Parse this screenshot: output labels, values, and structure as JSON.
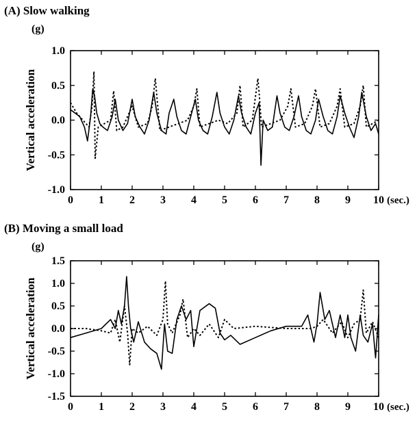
{
  "chart_data": [
    {
      "type": "line",
      "title": "(A)  Slow walking",
      "unit_label": "(g)",
      "ylabel": "Vertical acceleration",
      "xlabel": "",
      "x_unit_label": "(sec.)",
      "xlim": [
        0,
        10
      ],
      "ylim": [
        -1.0,
        1.0
      ],
      "xticks": [
        "0",
        "1",
        "2",
        "3",
        "4",
        "5",
        "6",
        "7",
        "8",
        "9",
        "10"
      ],
      "yticks": [
        "1.0",
        "0.5",
        "0.0",
        "-0.5",
        "-1.0"
      ],
      "grid": false,
      "series": [
        {
          "style": "solid",
          "x": [
            0,
            0.15,
            0.3,
            0.45,
            0.55,
            0.65,
            0.72,
            0.78,
            0.85,
            0.95,
            1.05,
            1.2,
            1.35,
            1.45,
            1.55,
            1.7,
            1.85,
            2.0,
            2.1,
            2.25,
            2.4,
            2.55,
            2.7,
            2.8,
            2.95,
            3.1,
            3.2,
            3.35,
            3.45,
            3.6,
            3.75,
            3.9,
            4.05,
            4.15,
            4.3,
            4.45,
            4.6,
            4.75,
            4.85,
            5.0,
            5.15,
            5.3,
            5.45,
            5.55,
            5.7,
            5.85,
            6.0,
            6.12,
            6.18,
            6.25,
            6.4,
            6.55,
            6.7,
            6.8,
            6.95,
            7.1,
            7.25,
            7.4,
            7.5,
            7.65,
            7.8,
            7.95,
            8.05,
            8.2,
            8.35,
            8.5,
            8.65,
            8.75,
            8.9,
            9.05,
            9.2,
            9.35,
            9.45,
            9.6,
            9.75,
            9.9,
            10.0
          ],
          "y": [
            0.15,
            0.1,
            0.05,
            -0.1,
            -0.3,
            0.05,
            0.45,
            0.35,
            0.1,
            -0.05,
            -0.1,
            -0.15,
            0.05,
            0.3,
            0.0,
            -0.15,
            -0.05,
            0.3,
            0.05,
            -0.1,
            -0.2,
            0.0,
            0.4,
            0.1,
            -0.15,
            -0.2,
            0.1,
            0.3,
            0.05,
            -0.15,
            -0.2,
            0.05,
            0.3,
            0.0,
            -0.15,
            -0.2,
            0.05,
            0.4,
            0.1,
            -0.1,
            -0.2,
            0.0,
            0.35,
            0.1,
            -0.1,
            -0.2,
            0.1,
            0.25,
            -0.65,
            0.0,
            -0.15,
            -0.1,
            0.35,
            0.1,
            -0.1,
            -0.15,
            0.05,
            0.35,
            0.05,
            -0.15,
            -0.2,
            0.0,
            0.3,
            0.05,
            -0.15,
            -0.2,
            0.05,
            0.35,
            0.1,
            -0.1,
            -0.25,
            0.05,
            0.4,
            0.05,
            -0.15,
            -0.05,
            -0.2
          ]
        },
        {
          "style": "dotted",
          "x": [
            0,
            0.2,
            0.4,
            0.6,
            0.7,
            0.76,
            0.8,
            0.9,
            1.1,
            1.3,
            1.4,
            1.5,
            1.7,
            2.0,
            2.2,
            2.5,
            2.65,
            2.75,
            2.9,
            3.2,
            3.5,
            3.8,
            4.0,
            4.1,
            4.2,
            4.5,
            4.8,
            5.1,
            5.4,
            5.5,
            5.6,
            5.9,
            6.08,
            6.12,
            6.2,
            6.5,
            6.8,
            7.05,
            7.15,
            7.3,
            7.6,
            7.85,
            7.95,
            8.1,
            8.4,
            8.65,
            8.75,
            8.9,
            9.2,
            9.4,
            9.5,
            9.6,
            9.8,
            10.0
          ],
          "y": [
            0.25,
            0.1,
            0.0,
            -0.1,
            0.2,
            0.7,
            -0.55,
            -0.1,
            -0.05,
            0.0,
            0.42,
            -0.15,
            -0.1,
            0.2,
            -0.1,
            -0.05,
            0.2,
            0.6,
            -0.15,
            -0.1,
            -0.05,
            0.0,
            0.2,
            0.45,
            -0.1,
            -0.05,
            0.0,
            -0.05,
            0.1,
            0.5,
            -0.1,
            0.0,
            0.6,
            0.4,
            -0.1,
            -0.05,
            0.0,
            0.2,
            0.45,
            -0.1,
            -0.05,
            0.2,
            0.45,
            -0.1,
            -0.05,
            0.2,
            0.45,
            -0.1,
            -0.05,
            0.2,
            0.5,
            -0.1,
            -0.05,
            0.0
          ]
        }
      ]
    },
    {
      "type": "line",
      "title": "(B)  Moving a small load",
      "unit_label": "(g)",
      "ylabel": "Vertical acceleration",
      "xlabel": "",
      "x_unit_label": "(sec.)",
      "xlim": [
        0,
        10
      ],
      "ylim": [
        -1.5,
        1.5
      ],
      "xticks": [
        "0",
        "1",
        "2",
        "3",
        "4",
        "5",
        "6",
        "7",
        "8",
        "9",
        "10"
      ],
      "yticks": [
        "1.5",
        "1.0",
        "0.5",
        "0.0",
        "-0.5",
        "-1.0",
        "-1.5"
      ],
      "grid": false,
      "series": [
        {
          "style": "solid",
          "x": [
            0,
            0.5,
            1.0,
            1.3,
            1.45,
            1.55,
            1.65,
            1.75,
            1.82,
            1.88,
            1.95,
            2.05,
            2.2,
            2.4,
            2.6,
            2.8,
            2.95,
            3.05,
            3.15,
            3.3,
            3.45,
            3.6,
            3.75,
            3.9,
            4.0,
            4.2,
            4.5,
            4.7,
            4.85,
            5.0,
            5.2,
            5.5,
            6.0,
            6.5,
            7.0,
            7.5,
            7.7,
            7.9,
            8.0,
            8.1,
            8.25,
            8.4,
            8.6,
            8.75,
            8.9,
            9.0,
            9.1,
            9.25,
            9.4,
            9.5,
            9.65,
            9.8,
            9.9,
            10.0
          ],
          "y": [
            -0.2,
            -0.1,
            0.0,
            0.2,
            0.0,
            0.4,
            0.1,
            0.5,
            1.15,
            0.5,
            0.0,
            -0.3,
            0.15,
            -0.3,
            -0.45,
            -0.55,
            -0.9,
            0.1,
            -0.5,
            -0.55,
            0.2,
            0.5,
            0.2,
            0.4,
            -0.4,
            0.4,
            0.55,
            0.45,
            -0.1,
            -0.25,
            -0.15,
            -0.35,
            -0.2,
            -0.05,
            0.05,
            0.05,
            0.3,
            -0.3,
            0.1,
            0.8,
            0.2,
            0.4,
            -0.2,
            0.3,
            -0.2,
            0.3,
            -0.2,
            -0.5,
            0.3,
            -0.15,
            -0.3,
            0.1,
            -0.65,
            0.3
          ]
        },
        {
          "style": "dotted",
          "x": [
            0,
            0.5,
            1.0,
            1.3,
            1.45,
            1.6,
            1.75,
            1.85,
            1.92,
            2.0,
            2.2,
            2.5,
            2.8,
            3.0,
            3.08,
            3.15,
            3.3,
            3.55,
            3.65,
            3.8,
            4.0,
            4.2,
            4.5,
            4.8,
            5.0,
            5.3,
            6.0,
            7.0,
            7.8,
            8.0,
            8.2,
            8.5,
            8.8,
            9.0,
            9.2,
            9.4,
            9.5,
            9.6,
            9.8,
            10.0
          ],
          "y": [
            0.0,
            0.0,
            -0.05,
            -0.1,
            0.2,
            -0.3,
            0.5,
            -0.1,
            -0.8,
            0.0,
            -0.1,
            0.05,
            -0.15,
            0.2,
            1.05,
            0.1,
            -0.1,
            0.3,
            0.65,
            -0.2,
            0.0,
            -0.15,
            0.1,
            -0.2,
            0.2,
            0.0,
            0.05,
            0.0,
            0.0,
            0.05,
            0.2,
            -0.1,
            0.15,
            -0.2,
            0.1,
            0.2,
            0.85,
            -0.1,
            0.15,
            -0.2
          ]
        }
      ]
    }
  ]
}
